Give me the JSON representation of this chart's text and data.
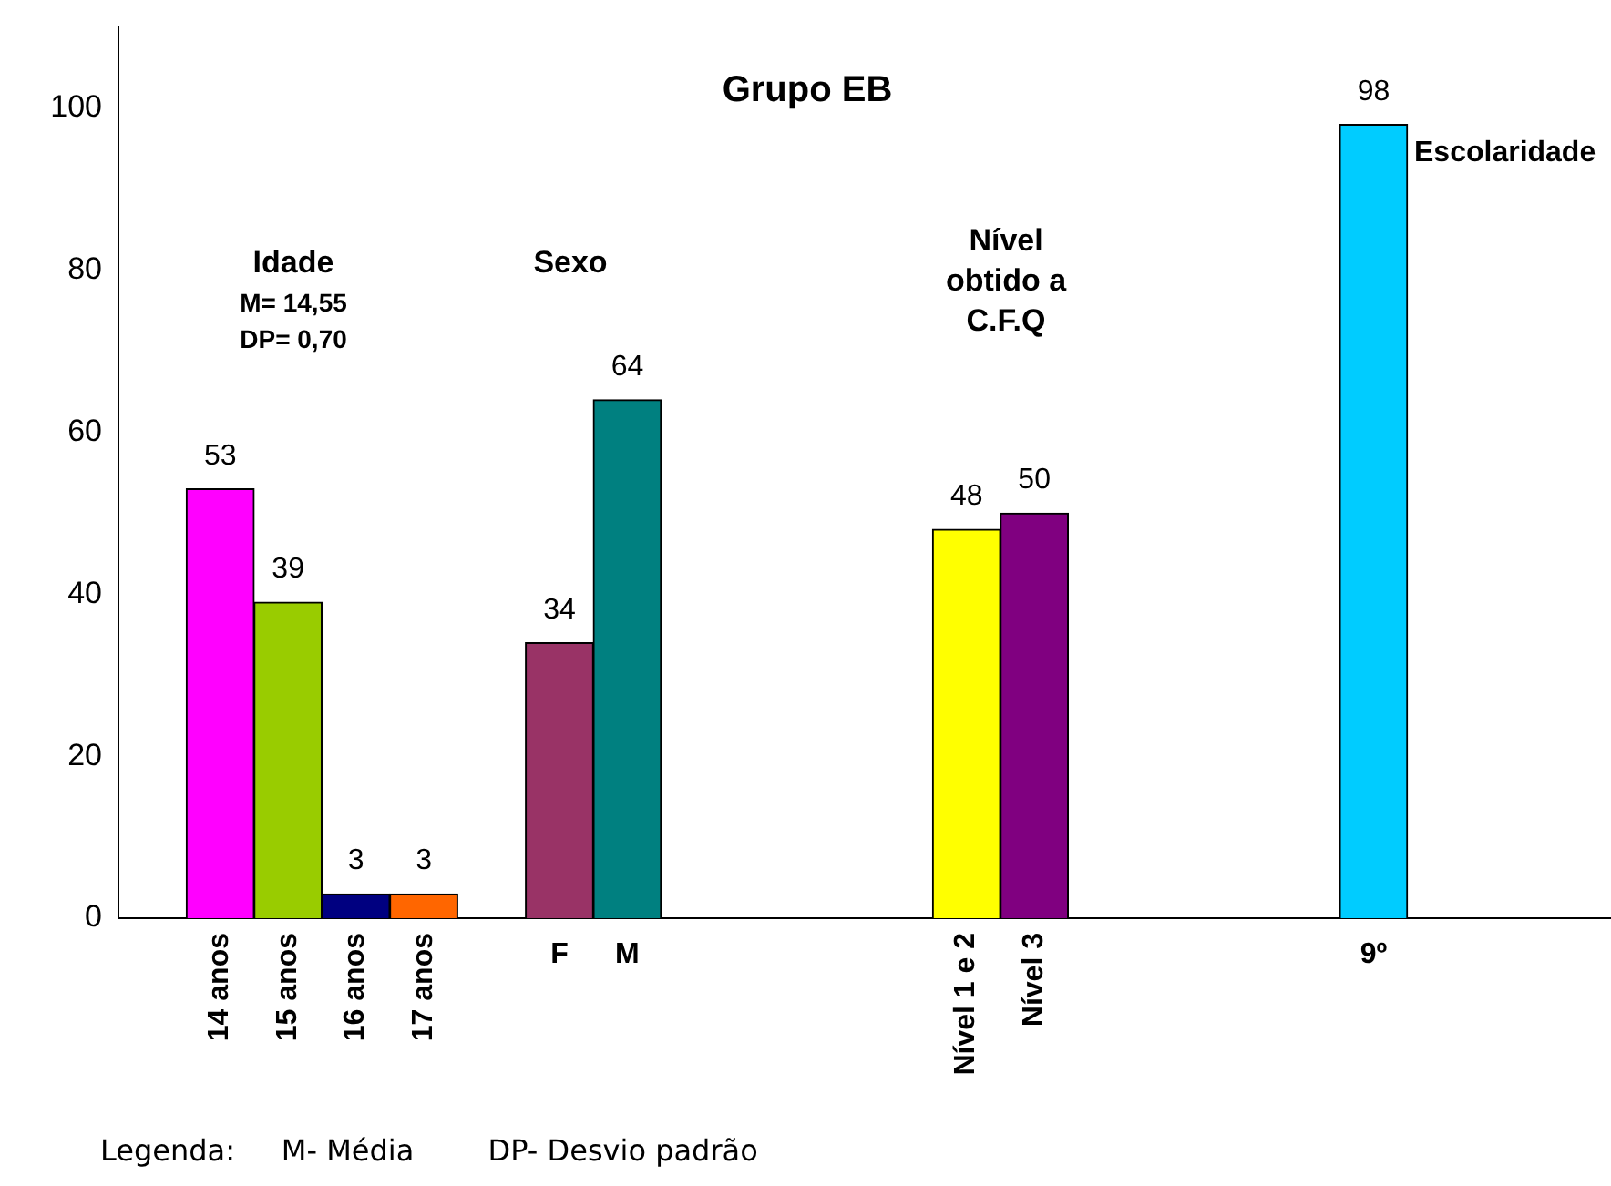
{
  "chart_data": {
    "type": "bar",
    "title": "Grupo EB",
    "categories": [
      null,
      "14 anos",
      "15 anos",
      "16 anos",
      "17 anos",
      null,
      "F",
      "M",
      null,
      null,
      null,
      null,
      "Nível 1 e 2",
      "Nível 3",
      null,
      null,
      null,
      null,
      "9º",
      null,
      null,
      null
    ],
    "values": [
      null,
      53,
      39,
      3,
      3,
      null,
      34,
      64,
      null,
      null,
      null,
      null,
      48,
      50,
      null,
      null,
      null,
      null,
      98,
      null,
      null,
      null
    ],
    "colors": [
      "#ffffff",
      "#ff00ff",
      "#99cc00",
      "#000080",
      "#ff6600",
      "#ffffff",
      "#993366",
      "#008080",
      "#ffffff",
      "#ffffff",
      "#ffffff",
      "#ffffff",
      "#ffff00",
      "#800080",
      "#ffffff",
      "#ffffff",
      "#ffffff",
      "#ffffff",
      "#00ccff",
      "#ffffff",
      "#ffffff",
      "#ffffff"
    ],
    "ylim": [
      0,
      110
    ],
    "yticks": [
      0,
      20,
      40,
      60,
      80,
      100
    ],
    "grid": false,
    "data_labels": true,
    "annotations": [
      "Idade",
      "M= 14,55",
      "DP= 0,70",
      "Sexo",
      "Nível",
      "obtido a",
      "C.F.Q",
      "Escolaridade",
      "Legenda:     M- Média        DP- Desvio padrão"
    ]
  }
}
